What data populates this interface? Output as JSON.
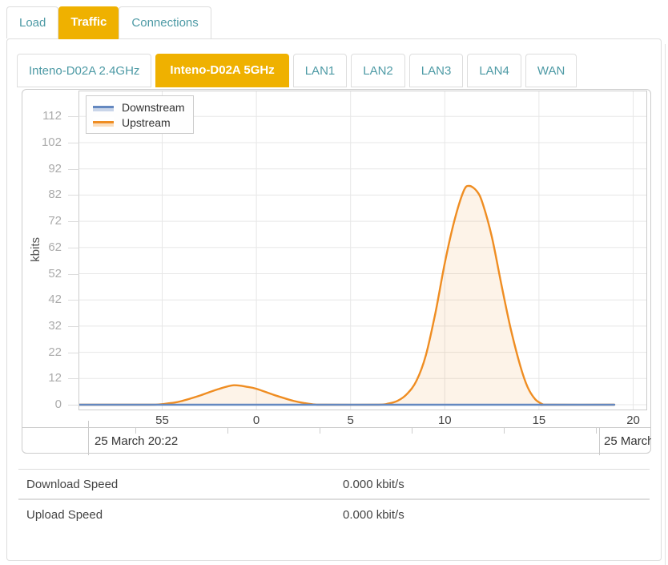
{
  "colors": {
    "accent": "#EFB100",
    "teal": "#4D9AA5",
    "border": "#DDDDDD",
    "chart-border": "#CCCCCC",
    "grid": "#E7E7E7",
    "text-dark": "#444444",
    "text-gray": "#ABABAB"
  },
  "top_tabs": {
    "active": "Traffic",
    "items": [
      {
        "label": "Load"
      },
      {
        "label": "Traffic"
      },
      {
        "label": "Connections"
      }
    ]
  },
  "sub_tabs": {
    "active": "Inteno-D02A 5GHz",
    "items": [
      {
        "label": "Inteno-D02A 2.4GHz"
      },
      {
        "label": "Inteno-D02A 5GHz"
      },
      {
        "label": "LAN1"
      },
      {
        "label": "LAN2"
      },
      {
        "label": "LAN3"
      },
      {
        "label": "LAN4"
      },
      {
        "label": "WAN"
      }
    ]
  },
  "chart_data": {
    "type": "area",
    "ylabel": "kbits",
    "grid": true,
    "legend_position": "top-left",
    "y_ticks": [
      0,
      12,
      22,
      32,
      42,
      52,
      62,
      72,
      82,
      92,
      102,
      112
    ],
    "ylim": [
      0,
      121
    ],
    "x_ticks": [
      {
        "minute": -5,
        "label": "55"
      },
      {
        "minute": 0,
        "label": "0"
      },
      {
        "minute": 5,
        "label": "5"
      },
      {
        "minute": 10,
        "label": "10"
      },
      {
        "minute": 15,
        "label": "15"
      },
      {
        "minute": 20,
        "label": "20"
      }
    ],
    "x_range_minutes": [
      -9.4,
      20.7
    ],
    "start_label": "25 March 20:22",
    "end_label": "25 March",
    "series": [
      {
        "name": "Downstream",
        "color": "#6488C0",
        "legend_fill": "rgba(100,136,192,0.35)",
        "area_fill": "rgba(100,136,192,0.15)",
        "points": [
          [
            -9.4,
            0
          ],
          [
            19.0,
            0
          ]
        ]
      },
      {
        "name": "Upstream",
        "color": "#EF8D22",
        "legend_fill": "rgba(239,141,34,0.30)",
        "area_fill": "rgba(239,141,34,0.10)",
        "points": [
          [
            -9.4,
            0
          ],
          [
            -6.0,
            0
          ],
          [
            -5.2,
            0.1
          ],
          [
            -4.5,
            0.8
          ],
          [
            -4,
            1.6
          ],
          [
            -3,
            4.2
          ],
          [
            -2,
            7.2
          ],
          [
            -1.2,
            8.9
          ],
          [
            -0.5,
            8.2
          ],
          [
            0,
            7.3
          ],
          [
            1,
            4.3
          ],
          [
            2,
            1.7
          ],
          [
            2.6,
            0.7
          ],
          [
            3.1,
            0.1
          ],
          [
            3.6,
            0
          ],
          [
            6.4,
            0
          ],
          [
            7,
            0.5
          ],
          [
            7.5,
            1.8
          ],
          [
            8,
            5
          ],
          [
            8.5,
            11
          ],
          [
            9,
            21
          ],
          [
            9.5,
            37
          ],
          [
            10,
            56
          ],
          [
            10.5,
            72
          ],
          [
            11,
            83.5
          ],
          [
            11.3,
            85.5
          ],
          [
            11.7,
            83.5
          ],
          [
            12,
            79
          ],
          [
            12.5,
            66
          ],
          [
            13,
            48
          ],
          [
            13.5,
            31
          ],
          [
            14,
            17
          ],
          [
            14.4,
            8
          ],
          [
            14.8,
            2.5
          ],
          [
            15.2,
            0.2
          ],
          [
            15.4,
            0
          ],
          [
            19.0,
            0
          ]
        ]
      }
    ]
  },
  "stats": {
    "rows": [
      {
        "label": "Download Speed",
        "value": "0.000 kbit/s"
      },
      {
        "label": "Upload Speed",
        "value": "0.000 kbit/s"
      }
    ]
  }
}
